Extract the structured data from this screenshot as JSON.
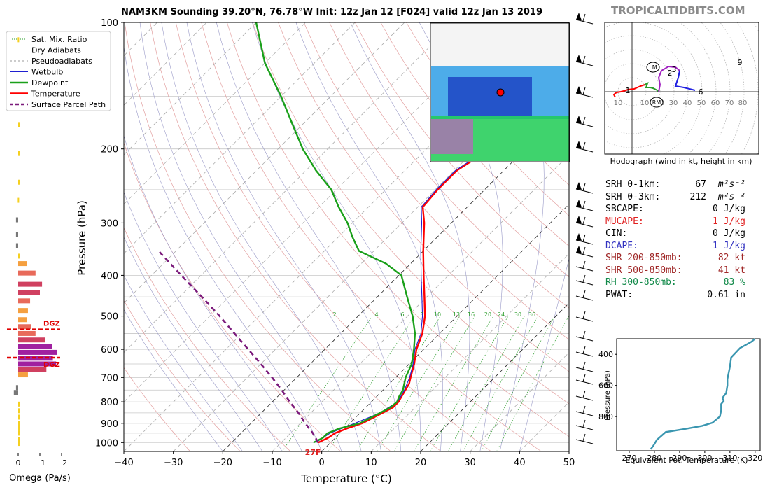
{
  "title": "NAM3KM Sounding 39.20°N, 76.78°W Init: 12z Jan 12 [F024] valid 12z Jan 13 2019",
  "brand": "TROPICALTIDBITS.COM",
  "legend": [
    {
      "label": "Sat. Mix. Ratio",
      "color": "#2a9d2a",
      "style": "dotted"
    },
    {
      "label": "Dry Adiabats",
      "color": "#e08080",
      "style": "solid"
    },
    {
      "label": "Pseudoadiabats",
      "color": "#999999",
      "style": "dashed"
    },
    {
      "label": "Wetbulb",
      "color": "#1f1fd0",
      "style": "solid"
    },
    {
      "label": "Dewpoint",
      "color": "#1aa01a",
      "style": "thick"
    },
    {
      "label": "Temperature",
      "color": "#ff0000",
      "style": "thick"
    },
    {
      "label": "Surface Parcel Path",
      "color": "#7b1a7b",
      "style": "thickdash"
    }
  ],
  "stats": [
    {
      "label": "SRH 0-1km:",
      "value": "67",
      "unit": "m²s⁻²",
      "color": "#000000"
    },
    {
      "label": "SRH 0-3km:",
      "value": "212",
      "unit": "m²s⁻²",
      "color": "#000000"
    },
    {
      "label": "SBCAPE:",
      "value": "0 J/kg",
      "unit": "",
      "color": "#000000"
    },
    {
      "label": "MUCAPE:",
      "value": "1 J/kg",
      "unit": "",
      "color": "#e02020"
    },
    {
      "label": "CIN:",
      "value": "0 J/kg",
      "unit": "",
      "color": "#000000"
    },
    {
      "label": "DCAPE:",
      "value": "1 J/kg",
      "unit": "",
      "color": "#3030c0"
    },
    {
      "label": "SHR 200-850mb:",
      "value": "82 kt",
      "unit": "",
      "color": "#a02828"
    },
    {
      "label": "SHR 500-850mb:",
      "value": "41 kt",
      "unit": "",
      "color": "#a02828"
    },
    {
      "label": "RH 300-850mb:",
      "value": "83 %",
      "unit": "",
      "color": "#138a4a"
    },
    {
      "label": "PWAT:",
      "value": "0.61 in",
      "unit": "",
      "color": "#000000"
    }
  ],
  "chart_data": [
    {
      "type": "line",
      "name": "skew-t",
      "xlabel": "Temperature (°C)",
      "ylabel": "Pressure (hPa)",
      "xlim": [
        -40,
        50
      ],
      "ylim": [
        1050,
        100
      ],
      "x_ticks": [
        -40,
        -30,
        -20,
        -10,
        0,
        10,
        20,
        30,
        40,
        50
      ],
      "y_ticks": [
        100,
        200,
        300,
        400,
        500,
        600,
        700,
        800,
        900,
        1000
      ],
      "mixing_ratio_labels": [
        "2",
        "4",
        "6",
        "8",
        "10",
        "13",
        "16",
        "20",
        "24",
        "30",
        "36"
      ],
      "surface_label": "27F",
      "series": [
        {
          "name": "Temperature",
          "color": "#ff0000",
          "points": [
            [
              1000,
              -2.5
            ],
            [
              975,
              -1.5
            ],
            [
              950,
              -1.0
            ],
            [
              925,
              0.5
            ],
            [
              900,
              2.5
            ],
            [
              850,
              4.5
            ],
            [
              825,
              5.5
            ],
            [
              800,
              5.5
            ],
            [
              775,
              5.0
            ],
            [
              750,
              4.5
            ],
            [
              725,
              4.0
            ],
            [
              700,
              3.0
            ],
            [
              650,
              1.0
            ],
            [
              600,
              -1.5
            ],
            [
              550,
              -3.5
            ],
            [
              500,
              -6.5
            ],
            [
              450,
              -10.5
            ],
            [
              400,
              -15.0
            ],
            [
              350,
              -20.0
            ],
            [
              300,
              -25.5
            ],
            [
              275,
              -29.0
            ],
            [
              250,
              -29.5
            ],
            [
              225,
              -29.5
            ],
            [
              200,
              -27.0
            ],
            [
              175,
              -22.5
            ],
            [
              150,
              -18.0
            ],
            [
              125,
              -16.5
            ],
            [
              100,
              -16.5
            ]
          ]
        },
        {
          "name": "Wetbulb",
          "color": "#1f1fd0",
          "points": [
            [
              1000,
              -3.0
            ],
            [
              950,
              -2.0
            ],
            [
              900,
              1.0
            ],
            [
              850,
              4.0
            ],
            [
              800,
              5.3
            ],
            [
              750,
              4.3
            ],
            [
              700,
              2.8
            ],
            [
              650,
              0.8
            ],
            [
              600,
              -1.8
            ],
            [
              550,
              -3.8
            ],
            [
              500,
              -7.0
            ],
            [
              450,
              -11.0
            ],
            [
              400,
              -15.5
            ],
            [
              350,
              -20.5
            ],
            [
              300,
              -26.0
            ],
            [
              275,
              -29.3
            ],
            [
              250,
              -29.8
            ],
            [
              225,
              -29.8
            ],
            [
              200,
              -27.5
            ],
            [
              175,
              -23.0
            ],
            [
              150,
              -18.5
            ],
            [
              125,
              -17.0
            ],
            [
              100,
              -17.0
            ]
          ]
        },
        {
          "name": "Dewpoint",
          "color": "#1aa01a",
          "points": [
            [
              1000,
              -3.5
            ],
            [
              975,
              -2.5
            ],
            [
              950,
              -2.5
            ],
            [
              925,
              -1.0
            ],
            [
              900,
              2.0
            ],
            [
              850,
              4.0
            ],
            [
              825,
              5.0
            ],
            [
              800,
              5.2
            ],
            [
              775,
              4.5
            ],
            [
              750,
              4.0
            ],
            [
              700,
              2.0
            ],
            [
              650,
              0.5
            ],
            [
              600,
              -2.0
            ],
            [
              550,
              -5.0
            ],
            [
              500,
              -9.0
            ],
            [
              450,
              -14.0
            ],
            [
              400,
              -19.5
            ],
            [
              375,
              -25.0
            ],
            [
              350,
              -33.0
            ],
            [
              325,
              -37.0
            ],
            [
              300,
              -41.0
            ],
            [
              275,
              -46.0
            ],
            [
              250,
              -51.0
            ],
            [
              225,
              -58.0
            ],
            [
              200,
              -65.0
            ],
            [
              175,
              -72.0
            ],
            [
              150,
              -80.0
            ],
            [
              125,
              -90.0
            ],
            [
              100,
              -100.0
            ]
          ]
        },
        {
          "name": "Surface Parcel Path",
          "color": "#7b1a7b",
          "points": [
            [
              1000,
              -2.5
            ],
            [
              950,
              -5.5
            ],
            [
              900,
              -9.0
            ],
            [
              850,
              -12.5
            ],
            [
              800,
              -16.5
            ],
            [
              750,
              -20.5
            ],
            [
              700,
              -25.0
            ],
            [
              650,
              -30.0
            ],
            [
              600,
              -35.5
            ],
            [
              550,
              -41.5
            ],
            [
              500,
              -48.0
            ],
            [
              450,
              -55.5
            ],
            [
              400,
              -64.0
            ],
            [
              350,
              -73.5
            ]
          ]
        }
      ]
    },
    {
      "type": "bar",
      "name": "omega",
      "xlabel": "Omega (Pa/s)",
      "x_ticks": [
        "0",
        "−1",
        "−2"
      ],
      "dgz_label": "DGZ",
      "dgz_pressures": [
        538,
        628
      ],
      "bars": [
        {
          "p": 110,
          "omega": 0.02
        },
        {
          "p": 175,
          "omega": -0.05
        },
        {
          "p": 205,
          "omega": -0.05
        },
        {
          "p": 240,
          "omega": -0.05
        },
        {
          "p": 265,
          "omega": 0.02
        },
        {
          "p": 295,
          "omega": 0.1
        },
        {
          "p": 320,
          "omega": 0.1
        },
        {
          "p": 340,
          "omega": 0.1
        },
        {
          "p": 360,
          "omega": -0.05
        },
        {
          "p": 375,
          "omega": -0.4
        },
        {
          "p": 395,
          "omega": -0.8
        },
        {
          "p": 420,
          "omega": -1.1
        },
        {
          "p": 440,
          "omega": -1.0
        },
        {
          "p": 460,
          "omega": -0.55
        },
        {
          "p": 485,
          "omega": -0.45
        },
        {
          "p": 510,
          "omega": -0.4
        },
        {
          "p": 530,
          "omega": -0.6
        },
        {
          "p": 550,
          "omega": -0.8
        },
        {
          "p": 570,
          "omega": -1.25
        },
        {
          "p": 590,
          "omega": -1.55
        },
        {
          "p": 610,
          "omega": -1.8
        },
        {
          "p": 630,
          "omega": -1.6
        },
        {
          "p": 650,
          "omega": -1.75
        },
        {
          "p": 670,
          "omega": -1.3
        },
        {
          "p": 690,
          "omega": -0.45
        },
        {
          "p": 740,
          "omega": 0.1
        },
        {
          "p": 760,
          "omega": 0.2
        },
        {
          "p": 810,
          "omega": -0.05
        },
        {
          "p": 840,
          "omega": -0.05
        },
        {
          "p": 870,
          "omega": -0.05
        },
        {
          "p": 900,
          "omega": -0.05
        },
        {
          "p": 925,
          "omega": -0.05
        },
        {
          "p": 950,
          "omega": -0.05
        },
        {
          "p": 985,
          "omega": -0.05
        },
        {
          "p": 1005,
          "omega": -0.05
        }
      ]
    },
    {
      "type": "line",
      "name": "hodograph",
      "caption": "Hodograph (wind in kt, height in km)",
      "ring_labels": [
        "10",
        "10",
        "20",
        "30",
        "40",
        "50",
        "60",
        "70",
        "80"
      ],
      "height_labels": [
        "1",
        "2",
        "3",
        "6",
        "9"
      ],
      "markers": [
        "LM",
        "RM"
      ],
      "segments": [
        {
          "color": "#ff0000",
          "points": [
            [
              -24,
              -8
            ],
            [
              -26,
              -4
            ],
            [
              -22,
              -1
            ],
            [
              -16,
              0
            ],
            [
              -12,
              1
            ],
            [
              -6,
              3
            ],
            [
              3,
              4
            ],
            [
              12,
              8
            ],
            [
              18,
              10
            ]
          ]
        },
        {
          "color": "#2a9d2a",
          "points": [
            [
              18,
              10
            ],
            [
              22,
              12
            ],
            [
              20,
              6
            ],
            [
              26,
              6
            ],
            [
              30,
              5
            ],
            [
              36,
              2
            ],
            [
              38,
              0
            ]
          ]
        },
        {
          "color": "#a020c0",
          "points": [
            [
              38,
              0
            ],
            [
              40,
              10
            ],
            [
              38,
              20
            ],
            [
              42,
              30
            ],
            [
              52,
              36
            ],
            [
              62,
              35
            ],
            [
              68,
              30
            ]
          ]
        },
        {
          "color": "#2020e0",
          "points": [
            [
              68,
              30
            ],
            [
              66,
              20
            ],
            [
              62,
              8
            ],
            [
              74,
              6
            ],
            [
              90,
              2
            ]
          ]
        }
      ]
    },
    {
      "type": "line",
      "name": "theta-e",
      "xlabel": "Equivalent Pot. Temperature (K)",
      "ylabel": "Pressure (hPa)",
      "xlim": [
        265,
        322
      ],
      "ylim": [
        1020,
        300
      ],
      "x_ticks": [
        270,
        280,
        290,
        300,
        310,
        320
      ],
      "y_ticks": [
        400,
        600,
        800
      ],
      "points": [
        [
          1010,
          278.5
        ],
        [
          990,
          279.5
        ],
        [
          950,
          281.0
        ],
        [
          900,
          284.5
        ],
        [
          880,
          292.0
        ],
        [
          860,
          299.0
        ],
        [
          840,
          303.0
        ],
        [
          800,
          306.0
        ],
        [
          760,
          306.5
        ],
        [
          720,
          306.5
        ],
        [
          700,
          307.5
        ],
        [
          680,
          307.0
        ],
        [
          650,
          308.5
        ],
        [
          600,
          309.0
        ],
        [
          560,
          309.0
        ],
        [
          520,
          309.5
        ],
        [
          480,
          310.0
        ],
        [
          420,
          310.5
        ],
        [
          360,
          314.0
        ],
        [
          320,
          318.5
        ],
        [
          300,
          320.0
        ]
      ]
    }
  ]
}
